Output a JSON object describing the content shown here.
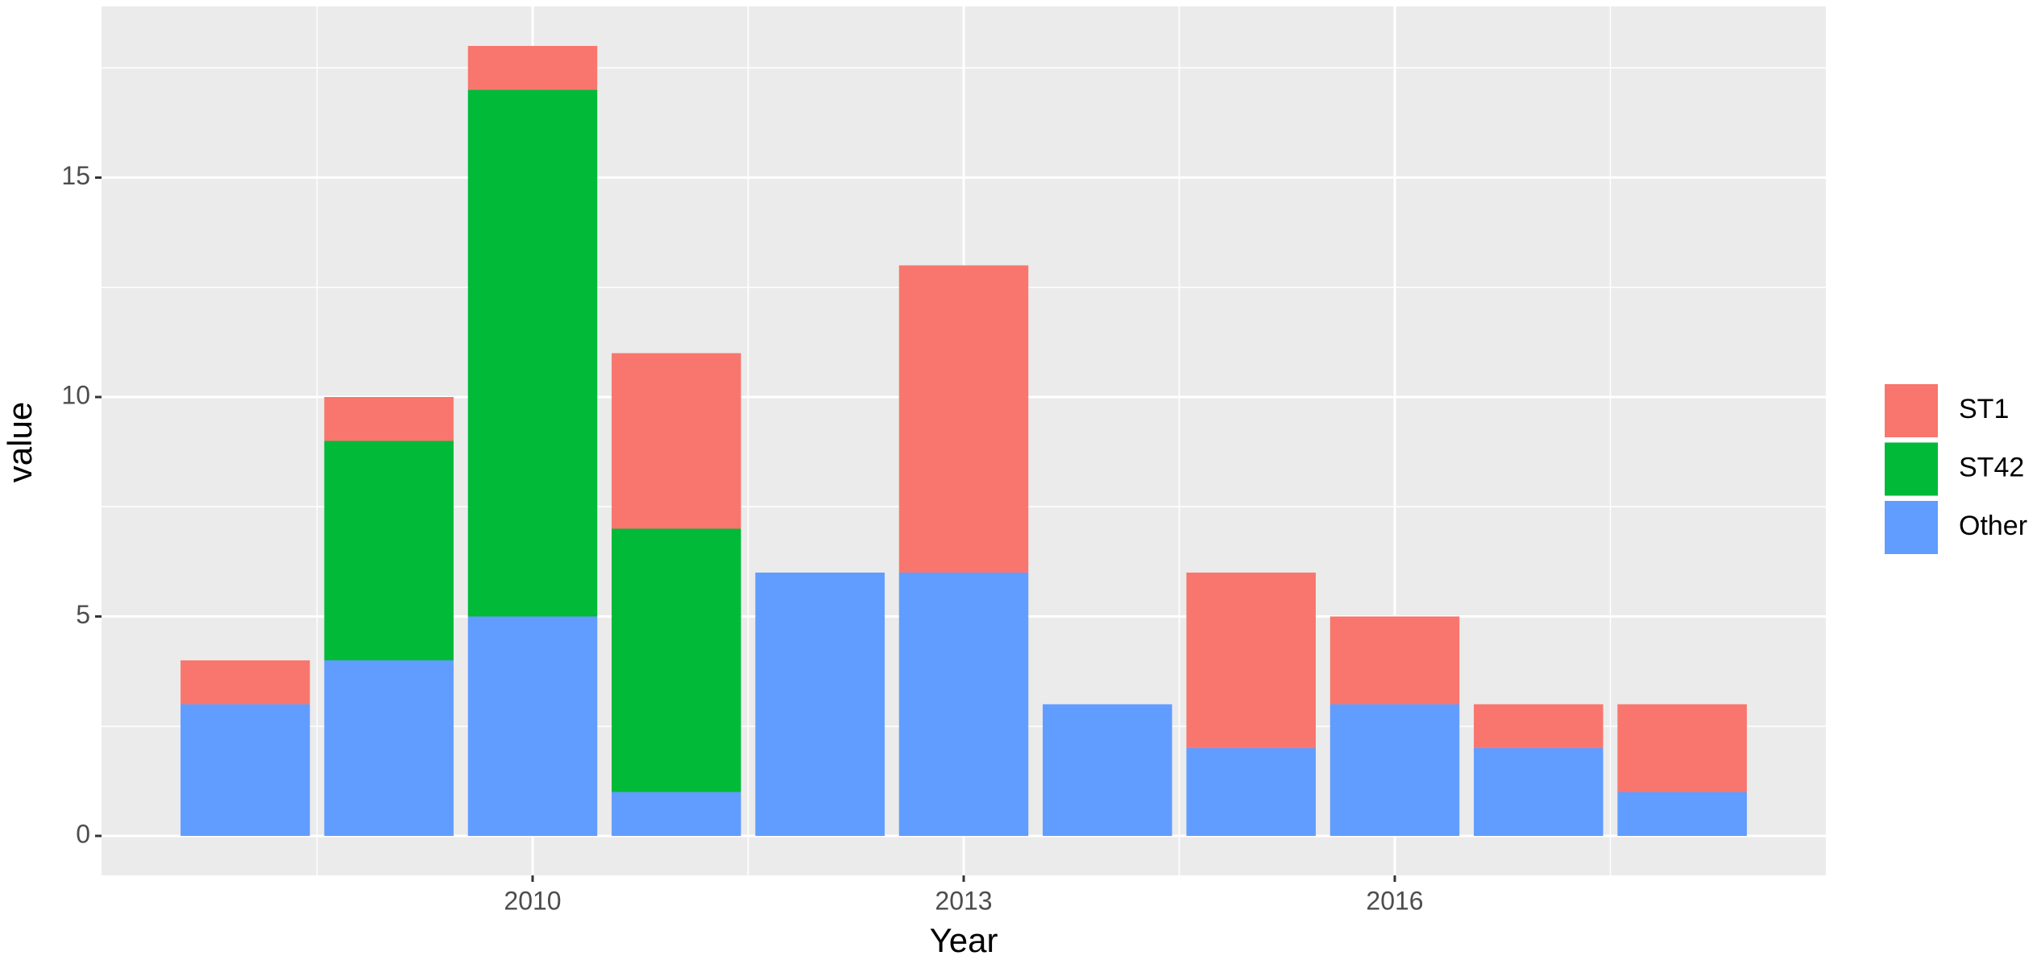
{
  "chart_data": {
    "type": "bar",
    "stacked": true,
    "x_label": "Year",
    "y_label": "value",
    "x": [
      2008,
      2009,
      2010,
      2011,
      2012,
      2013,
      2014,
      2015,
      2016,
      2017,
      2018
    ],
    "series": [
      {
        "name": "ST1",
        "color": "#F8766D",
        "values": [
          1,
          1,
          1,
          4,
          0,
          7,
          0,
          4,
          2,
          1,
          2
        ]
      },
      {
        "name": "ST42",
        "color": "#00BA38",
        "values": [
          0,
          5,
          12,
          6,
          0,
          0,
          0,
          0,
          0,
          0,
          0
        ]
      },
      {
        "name": "Other",
        "color": "#619CFF",
        "values": [
          3,
          4,
          5,
          1,
          6,
          6,
          3,
          2,
          3,
          2,
          1
        ]
      }
    ],
    "xlim": [
      2007,
      2019
    ],
    "xticks": [
      2010,
      2013,
      2016
    ],
    "ylim": [
      -0.9,
      18.9
    ],
    "yticks": [
      0,
      5,
      10,
      15
    ],
    "grid": true,
    "legend": "right"
  }
}
